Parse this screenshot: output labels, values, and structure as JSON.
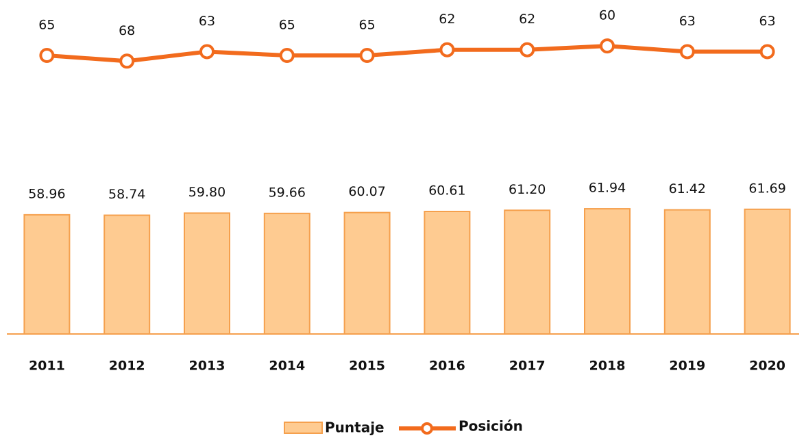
{
  "chart_data": {
    "type": "bar",
    "categories": [
      "2011",
      "2012",
      "2013",
      "2014",
      "2015",
      "2016",
      "2017",
      "2018",
      "2019",
      "2020"
    ],
    "series": [
      {
        "name": "Puntaje",
        "type": "bar",
        "color": "#fecb91",
        "values": [
          58.96,
          58.74,
          59.8,
          59.66,
          60.07,
          60.61,
          61.2,
          61.94,
          61.42,
          61.69
        ],
        "value_labels": [
          "58.96",
          "58.74",
          "59.80",
          "59.66",
          "60.07",
          "60.61",
          "61.20",
          "61.94",
          "61.42",
          "61.69"
        ]
      },
      {
        "name": "Posición",
        "type": "line",
        "axis": "y2",
        "color": "#f26b1d",
        "values": [
          65,
          68,
          63,
          65,
          65,
          62,
          62,
          60,
          63,
          63
        ]
      }
    ],
    "ylim": [
      0,
      150
    ],
    "y2lim": [
      52,
      212
    ],
    "y2_inverted": true
  }
}
